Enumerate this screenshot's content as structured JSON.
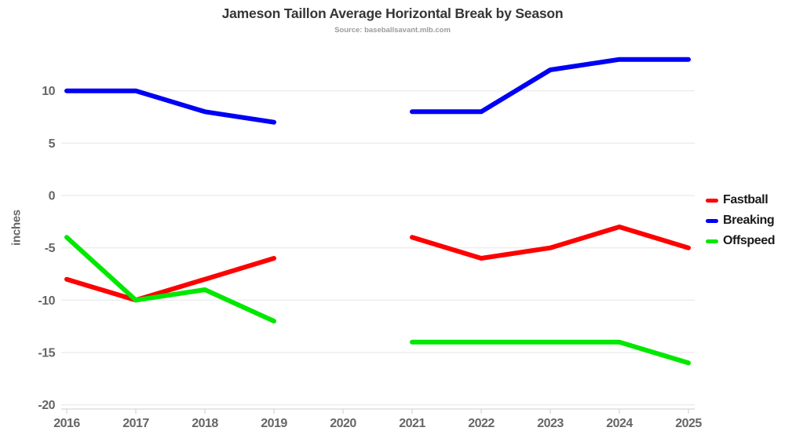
{
  "title": "Jameson Taillon Average Horizontal Break by Season",
  "subtitle": "Source: baseballsavant.mlb.com",
  "chart_data": {
    "type": "line",
    "x": [
      2016,
      2017,
      2018,
      2019,
      2020,
      2021,
      2022,
      2023,
      2024,
      2025
    ],
    "series": [
      {
        "name": "Fastball",
        "color": "#ff0000",
        "values": [
          -8,
          -10,
          -8,
          -6,
          null,
          -4,
          -6,
          -5,
          -3,
          -5
        ]
      },
      {
        "name": "Breaking",
        "color": "#0000f5",
        "values": [
          10,
          10,
          8,
          7,
          null,
          8,
          8,
          12,
          13,
          13
        ]
      },
      {
        "name": "Offspeed",
        "color": "#00e800",
        "values": [
          -4,
          -10,
          -9,
          -12,
          null,
          -14,
          -14,
          -14,
          -14,
          -16
        ]
      }
    ],
    "ylabel": "inches",
    "yticks": [
      10,
      5,
      0,
      -5,
      -10,
      -15,
      -20
    ],
    "ylim": [
      -20,
      13.5
    ],
    "grid": true,
    "gap_note": "no data for 2020",
    "legend_position": "right"
  },
  "colors": {
    "background": "#ffffff",
    "grid": "#e6e6e6",
    "axis": "#cccccc",
    "tick_label": "#666666",
    "title": "#363636",
    "subtitle": "#9b9b9b",
    "legend_text": "#1a1a1a"
  }
}
